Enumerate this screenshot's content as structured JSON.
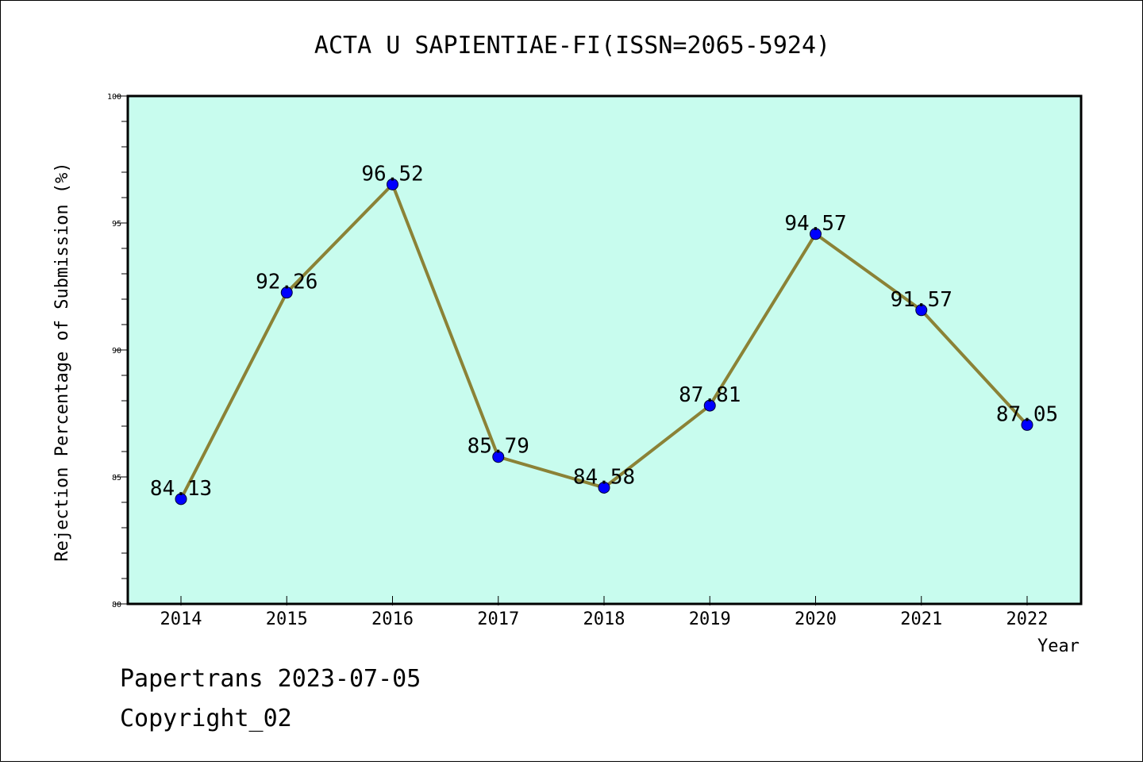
{
  "chart_data": {
    "type": "line",
    "title": "ACTA U SAPIENTIAE-FI(ISSN=2065-5924)",
    "xlabel": "Year",
    "ylabel": "Rejection Percentage of Submission (%)",
    "ylim": [
      80,
      100
    ],
    "yticks": [
      "80",
      "85",
      "90",
      "95",
      "100"
    ],
    "categories": [
      "2014",
      "2015",
      "2016",
      "2017",
      "2018",
      "2019",
      "2020",
      "2021",
      "2022"
    ],
    "values": [
      84.13,
      92.26,
      96.52,
      85.79,
      84.58,
      87.81,
      94.57,
      91.57,
      87.05
    ],
    "data_labels": [
      "84.13",
      "92.26",
      "96.52",
      "85.79",
      "84.58",
      "87.81",
      "94.57",
      "91.57",
      "87.05"
    ],
    "grid": false,
    "legend": "none",
    "colors": {
      "plot_background": "#c8fcee",
      "line": "#8b8236",
      "marker": "#0000ff"
    }
  },
  "footer": {
    "line1": "Papertrans 2023-07-05",
    "line2": "Copyright_02"
  }
}
